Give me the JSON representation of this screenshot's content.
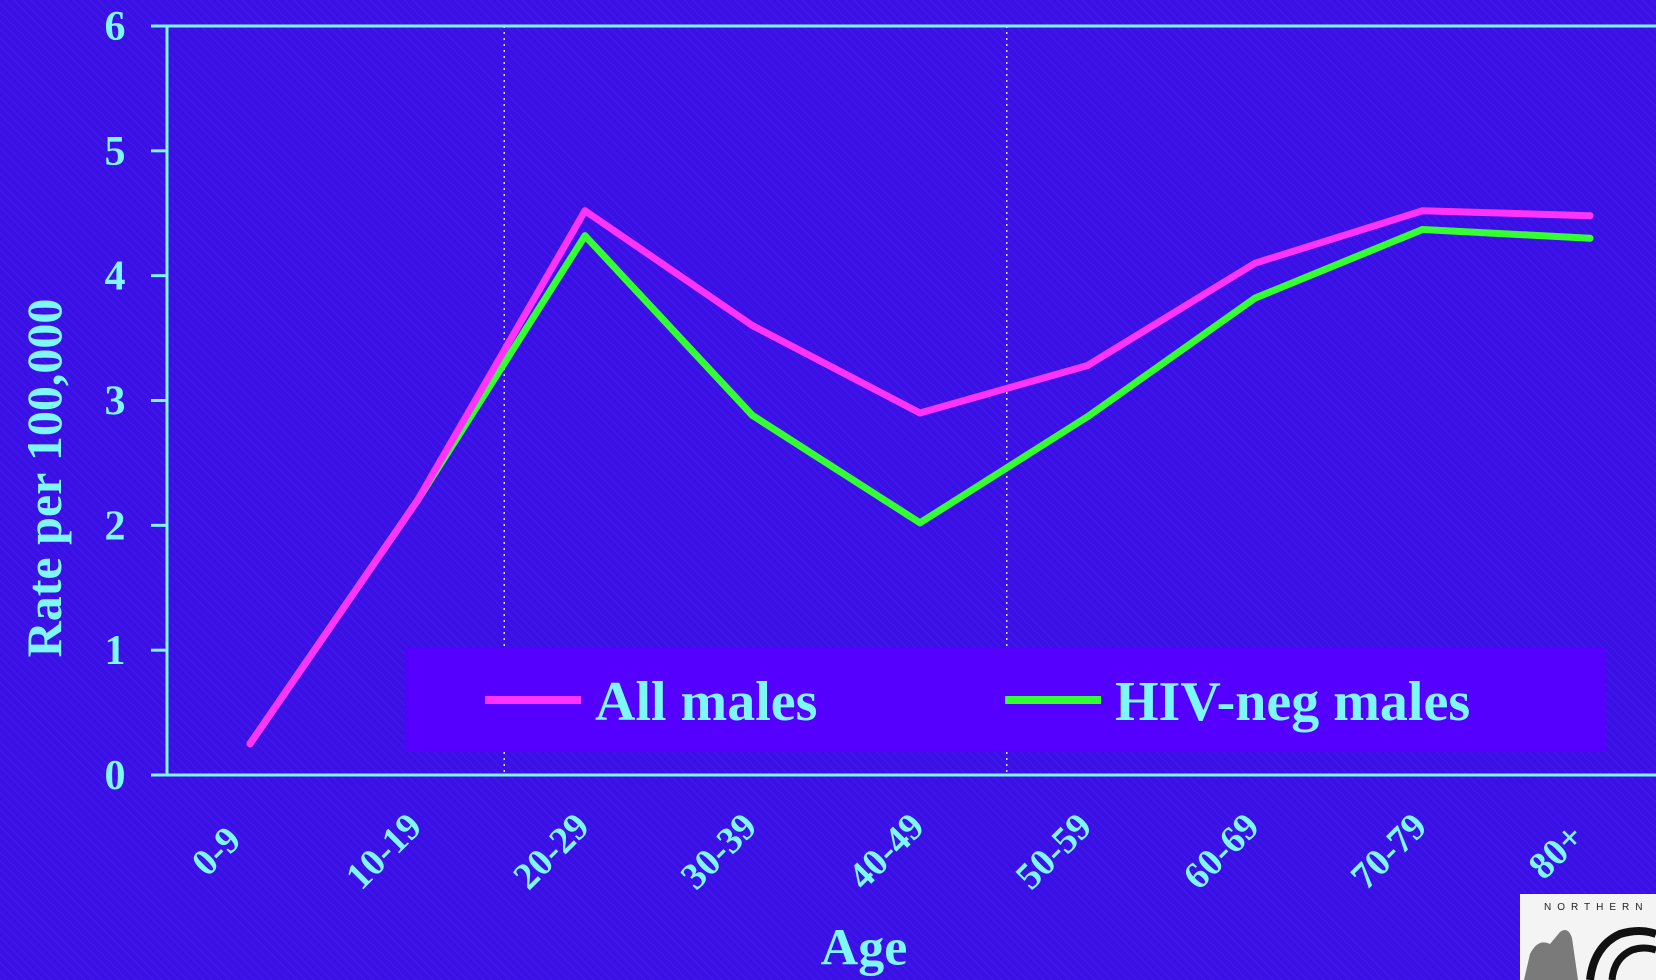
{
  "chart_data": {
    "type": "line",
    "xlabel": "Age",
    "ylabel": "Rate per 100,000",
    "categories": [
      "0-9",
      "10-19",
      "20-29",
      "30-39",
      "40-49",
      "50-59",
      "60-69",
      "70-79",
      "80+"
    ],
    "ylim": [
      0,
      6
    ],
    "yticks": [
      "0",
      "1",
      "2",
      "3",
      "4",
      "5",
      "6"
    ],
    "grid": "vertical dotted lines at 30-39 and 60-69",
    "legend_position": "bottom-right",
    "series": [
      {
        "name": "All males",
        "color": "#ff33ff",
        "values": [
          0.25,
          2.2,
          4.52,
          3.6,
          2.9,
          3.28,
          4.1,
          4.52,
          4.48
        ]
      },
      {
        "name": "HIV-neg males",
        "color": "#33ff33",
        "values": [
          0.25,
          2.2,
          4.32,
          2.88,
          2.02,
          2.87,
          3.82,
          4.37,
          4.3
        ]
      }
    ],
    "colors": {
      "background": "#3a10e6",
      "axis": "#7ef7f7",
      "text": "#7ef7f7",
      "legend_box": "#5500ff"
    }
  },
  "logo": {
    "text": "NORTHERN CALIFORNIA"
  }
}
